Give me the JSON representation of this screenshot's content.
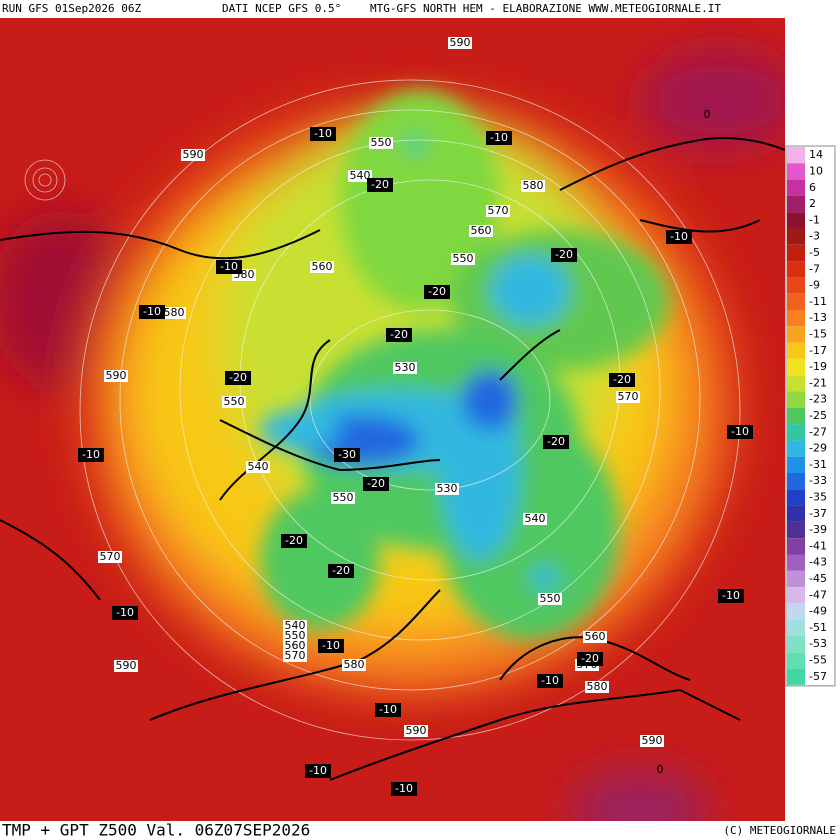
{
  "header": {
    "run": "RUN GFS 01Sep2026 06Z",
    "data_source": "DATI NCEP GFS 0.5°",
    "credit": "MTG-GFS NORTH HEM - ELABORAZIONE WWW.METEOGIORNALE.IT"
  },
  "footer": {
    "title": "TMP + GPT Z500 Val. 06Z07SEP2026",
    "copyright": "(C) METEOGIORNALE"
  },
  "legend": {
    "labels": [
      14,
      10,
      6,
      2,
      -1,
      -3,
      -5,
      -7,
      -9,
      -11,
      -13,
      -15,
      -17,
      -19,
      -21,
      -23,
      -25,
      -27,
      -29,
      -31,
      -33,
      -35,
      -37,
      -39,
      -41,
      -43,
      -45,
      -47,
      -49,
      -51,
      -53,
      -55,
      -57
    ],
    "colors": [
      "#f4b0e8",
      "#e458cc",
      "#c8309e",
      "#a02068",
      "#8c1034",
      "#a01818",
      "#c02010",
      "#d83010",
      "#e84818",
      "#f06020",
      "#f88020",
      "#f8a420",
      "#f8c818",
      "#f0e420",
      "#c8e030",
      "#90d840",
      "#50c860",
      "#30c8a0",
      "#30b8e0",
      "#2090e8",
      "#2068e0",
      "#2040c8",
      "#3030a8",
      "#503098",
      "#8040a0",
      "#a060c0",
      "#c090d8",
      "#d8b8e8",
      "#c0d8f0",
      "#a0e0e0",
      "#80e0c8",
      "#60e0b0",
      "#40d8a0"
    ]
  },
  "map": {
    "height_labels": [
      590,
      590,
      550,
      540,
      580,
      570,
      560,
      550,
      580,
      560,
      580,
      590,
      530,
      550,
      570,
      540,
      550,
      530,
      540,
      570,
      550,
      540,
      550,
      560,
      570,
      560,
      570,
      580,
      580,
      590,
      590,
      590,
      0,
      0
    ],
    "temp_labels": [
      -10,
      -10,
      -20,
      -10,
      -20,
      -10,
      -10,
      -20,
      -20,
      -20,
      -20,
      -10,
      -20,
      -30,
      -10,
      -20,
      -20,
      -20,
      -10,
      -10,
      -10,
      -20,
      -10,
      -10,
      -10,
      -10
    ]
  }
}
